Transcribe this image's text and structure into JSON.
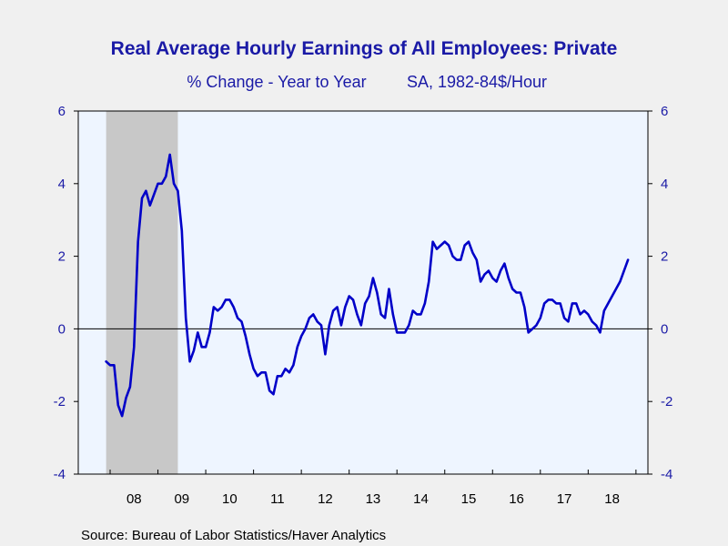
{
  "chart_data": {
    "type": "line",
    "title": "Real Average Hourly Earnings of All Employees: Private",
    "subtitle_left": "% Change - Year to Year",
    "subtitle_right": "SA, 1982-84$/Hour",
    "source": "Source:  Bureau of Labor Statistics/Haver Analytics",
    "ylim": [
      -4,
      6
    ],
    "yticks": [
      6,
      4,
      2,
      0,
      -2,
      -4
    ],
    "x_range": [
      "2007-05",
      "2019-04"
    ],
    "x_ticks": [
      {
        "date": "2008-07",
        "label": "08"
      },
      {
        "date": "2009-07",
        "label": "09"
      },
      {
        "date": "2010-07",
        "label": "10"
      },
      {
        "date": "2011-07",
        "label": "11"
      },
      {
        "date": "2012-07",
        "label": "12"
      },
      {
        "date": "2013-07",
        "label": "13"
      },
      {
        "date": "2014-07",
        "label": "14"
      },
      {
        "date": "2015-07",
        "label": "15"
      },
      {
        "date": "2016-07",
        "label": "16"
      },
      {
        "date": "2017-07",
        "label": "17"
      },
      {
        "date": "2018-07",
        "label": "18"
      }
    ],
    "recession": {
      "start": "2007-12",
      "end": "2009-06"
    },
    "grid": false,
    "colors": {
      "line": "#0000c8",
      "plot_bg": "#eef5ff",
      "recession": "#c8c8c8",
      "text": "#1a1aa6"
    },
    "series": [
      {
        "start": "2007-12",
        "values": [
          -0.9,
          -1.0,
          -1.0,
          -2.1,
          -2.4,
          -1.9,
          -1.6,
          -0.5,
          2.4,
          3.6,
          3.8,
          3.4,
          3.7,
          4.0,
          4.0,
          4.2,
          4.8,
          4.0,
          3.8,
          2.7,
          0.3,
          -0.9,
          -0.6,
          -0.1,
          -0.5,
          -0.5,
          -0.1,
          0.6,
          0.5,
          0.6,
          0.8,
          0.8,
          0.6,
          0.3,
          0.2,
          -0.2,
          -0.7,
          -1.1,
          -1.3,
          -1.2,
          -1.2,
          -1.7,
          -1.8,
          -1.3,
          -1.3,
          -1.1,
          -1.2,
          -1.0,
          -0.5,
          -0.2,
          0.0,
          0.3,
          0.4,
          0.2,
          0.1,
          -0.7,
          0.1,
          0.5,
          0.6,
          0.1,
          0.6,
          0.9,
          0.8,
          0.4,
          0.1,
          0.7,
          0.9,
          1.4,
          1.0,
          0.4,
          0.3,
          1.1,
          0.4,
          -0.1,
          -0.1,
          -0.1,
          0.1,
          0.5,
          0.4,
          0.4,
          0.7,
          1.3,
          2.4,
          2.2,
          2.3,
          2.4,
          2.3,
          2.0,
          1.9,
          1.9,
          2.3,
          2.4,
          2.1,
          1.9,
          1.3,
          1.5,
          1.6,
          1.4,
          1.3,
          1.6,
          1.8,
          1.4,
          1.1,
          1.0,
          1.0,
          0.6,
          -0.1,
          0.0,
          0.1,
          0.3,
          0.7,
          0.8,
          0.8,
          0.7,
          0.7,
          0.3,
          0.2,
          0.7,
          0.7,
          0.4,
          0.5,
          0.4,
          0.2,
          0.1,
          -0.1,
          0.5,
          0.7,
          0.9,
          1.1,
          1.3,
          1.6,
          1.9
        ]
      }
    ]
  }
}
